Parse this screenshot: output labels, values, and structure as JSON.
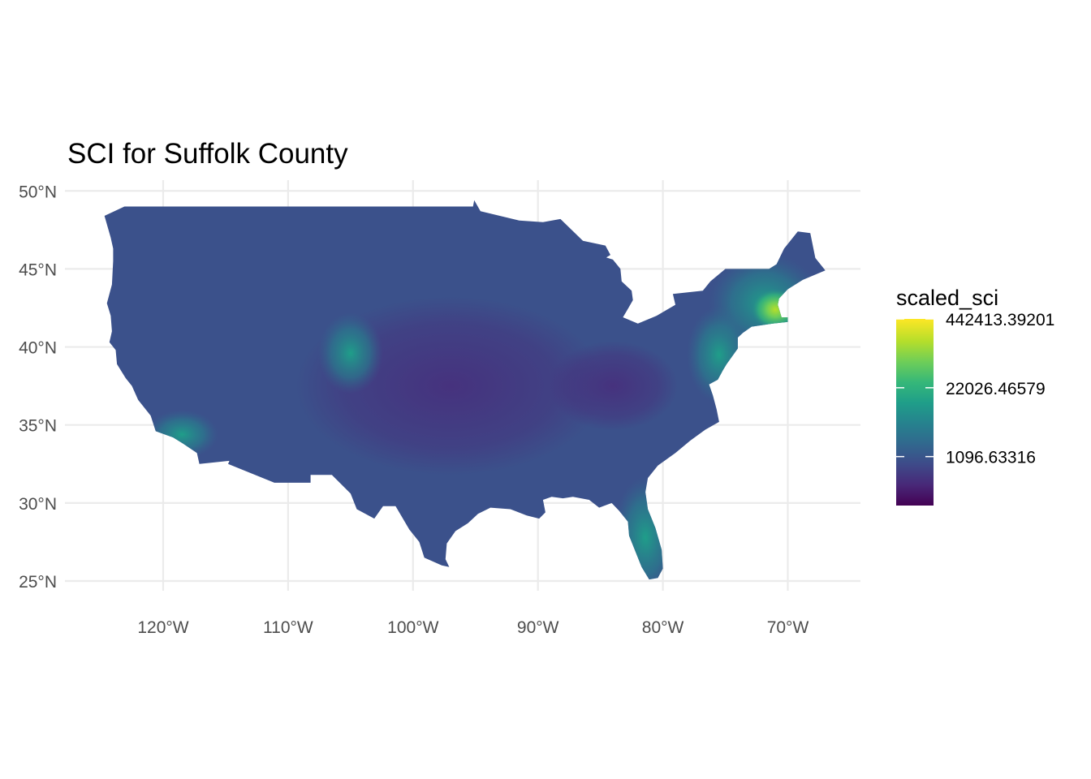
{
  "chart_data": {
    "type": "choropleth",
    "title": "SCI for Suffolk County",
    "xlabel": "",
    "ylabel": "",
    "x_ticks": [
      "120°W",
      "110°W",
      "100°W",
      "90°W",
      "80°W",
      "70°W"
    ],
    "y_ticks": [
      "25°N",
      "30°N",
      "35°N",
      "40°N",
      "45°N",
      "50°N"
    ],
    "x_tick_values": [
      -120,
      -110,
      -100,
      -90,
      -80,
      -70
    ],
    "y_tick_values": [
      25,
      30,
      35,
      40,
      45,
      50
    ],
    "grid": true,
    "legend": {
      "title": "scaled_sci",
      "position": "right",
      "colormap": "viridis",
      "scale": "log",
      "labels": [
        "442413.39201",
        "22026.46579",
        "1096.63316"
      ],
      "label_values": [
        442413.39201,
        22026.46579,
        1096.63316
      ]
    },
    "hotspots": [
      {
        "region": "Boston / eastern Massachusetts",
        "level": "highest"
      },
      {
        "region": "New England",
        "level": "high"
      },
      {
        "region": "Florida",
        "level": "elevated"
      },
      {
        "region": "Colorado Front Range",
        "level": "elevated"
      }
    ]
  },
  "colors": {
    "viridis": [
      "#440154",
      "#482878",
      "#3e4a89",
      "#31688e",
      "#26828e",
      "#1f9e89",
      "#35b779",
      "#6ece58",
      "#b5de2b",
      "#fde725"
    ],
    "base_fill": "#3b518b",
    "gridline": "#ebebeb"
  }
}
